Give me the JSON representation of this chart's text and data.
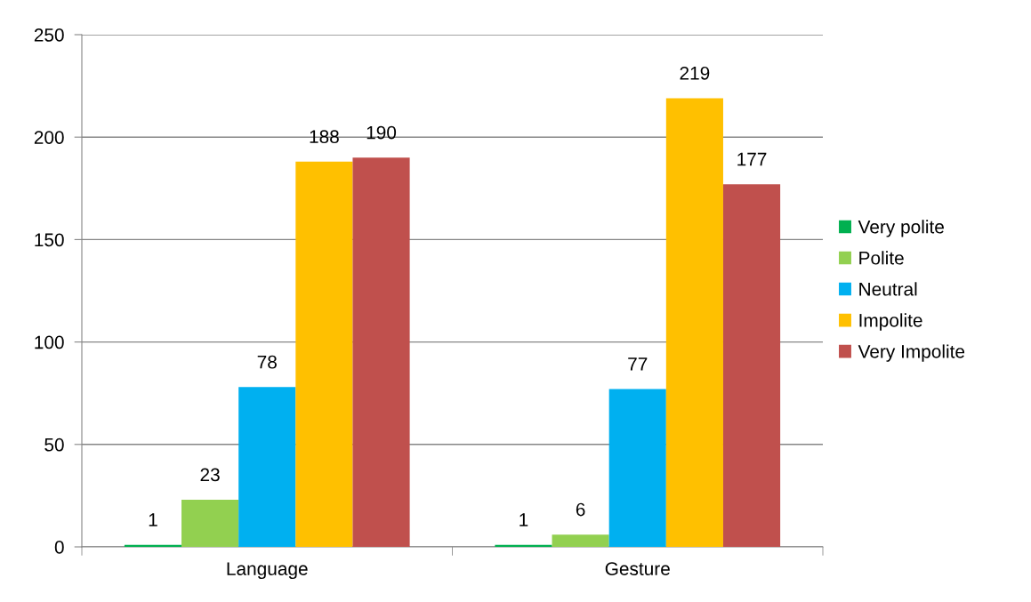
{
  "chart_data": {
    "type": "bar",
    "categories": [
      "Language",
      "Gesture"
    ],
    "series": [
      {
        "name": "Very polite",
        "color": "#00b050",
        "values": [
          1,
          1
        ]
      },
      {
        "name": "Polite",
        "color": "#92d050",
        "values": [
          23,
          6
        ]
      },
      {
        "name": "Neutral",
        "color": "#00b0f0",
        "values": [
          78,
          77
        ]
      },
      {
        "name": "Impolite",
        "color": "#ffc000",
        "values": [
          188,
          219
        ]
      },
      {
        "name": "Very Impolite",
        "color": "#c0504d",
        "values": [
          190,
          177
        ]
      }
    ],
    "ylim": [
      0,
      250
    ],
    "yticks": [
      0,
      50,
      100,
      150,
      200,
      250
    ],
    "grid": "y",
    "legend": "right",
    "data_labels": true
  }
}
